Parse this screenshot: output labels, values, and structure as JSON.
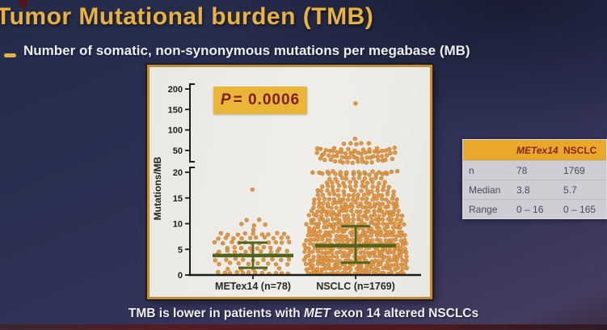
{
  "slide": {
    "title": "Tumor Mutational burden (TMB)",
    "bullet": "Number of somatic, non-synonymous mutations per megabase (MB)",
    "caption": {
      "pre": "TMB is lower in patients with ",
      "em": "MET",
      "post": " exon 14 altered NSCLCs"
    },
    "colors": {
      "title_gold": "#e8b23c",
      "background_navy": "#2a3053",
      "p_box_bg": "#e9b637",
      "p_text_maroon": "#7e1d10",
      "table_header_bg": "#e8a82a",
      "table_header_text": "#8c2318",
      "table_body_bg": "#cfccd3",
      "panel_border_gold": "#bb8f3e",
      "bottom_strip_maroon": "#4a1a20"
    }
  },
  "chart_data": {
    "type": "scatter",
    "subtype": "beeswarm-dot-plot with broken y-axis",
    "title": "",
    "xlabel": "",
    "ylabel": "Mutations/MB",
    "p_value": {
      "em": "P",
      "rest": " = 0.0006"
    },
    "y_axis": {
      "upper_ticks": [
        200,
        150,
        100,
        50
      ],
      "lower_ticks": [
        20,
        15,
        10,
        5,
        0
      ],
      "axis_break_between": [
        20,
        50
      ],
      "grid": false
    },
    "legend": "none",
    "colors": {
      "dot": "#e2953f",
      "dot_edge": "#c07a28",
      "stat_green": "#4f651c",
      "axis": "#1b1b1b"
    },
    "groups": [
      {
        "label": "METex14 (n=78)",
        "n": 78,
        "median": 3.8,
        "range_min": 0,
        "range_max": 16,
        "whisker_low": 1.4,
        "whisker_high": 6.3,
        "strata": [
          [
            16.5,
            1,
            0
          ],
          [
            10.6,
            2,
            8
          ],
          [
            9.8,
            3,
            14
          ],
          [
            8.9,
            1,
            4
          ],
          [
            8.0,
            9,
            40
          ],
          [
            7.2,
            10,
            44
          ],
          [
            6.3,
            11,
            46
          ],
          [
            5.3,
            8,
            32
          ],
          [
            4.6,
            9,
            42
          ],
          [
            3.8,
            7,
            44
          ],
          [
            3.0,
            9,
            46
          ],
          [
            2.2,
            8,
            42
          ],
          [
            1.2,
            5,
            32
          ],
          [
            0.4,
            12,
            44
          ]
        ]
      },
      {
        "label": "NSCLC (n=1769)",
        "n": 1769,
        "median": 5.7,
        "range_min": 0,
        "range_max": 165,
        "whisker_low": 2.4,
        "whisker_high": 9.5,
        "strata": [
          [
            0.4,
            26,
            60
          ],
          [
            1.2,
            27,
            62
          ],
          [
            2.0,
            26,
            62
          ],
          [
            2.8,
            27,
            62
          ],
          [
            3.6,
            26,
            62
          ],
          [
            4.4,
            27,
            62
          ],
          [
            5.2,
            26,
            62
          ],
          [
            6.0,
            27,
            62
          ],
          [
            6.8,
            26,
            60
          ],
          [
            7.6,
            25,
            60
          ],
          [
            8.4,
            24,
            58
          ],
          [
            9.2,
            23,
            56
          ],
          [
            10.0,
            24,
            60
          ],
          [
            10.8,
            22,
            56
          ],
          [
            11.6,
            22,
            58
          ],
          [
            12.4,
            21,
            54
          ],
          [
            13.2,
            20,
            52
          ],
          [
            14.0,
            19,
            52
          ],
          [
            14.8,
            18,
            50
          ],
          [
            15.6,
            16,
            46
          ],
          [
            16.4,
            15,
            48
          ],
          [
            17.2,
            13,
            42
          ],
          [
            18.0,
            11,
            36
          ],
          [
            18.8,
            10,
            32
          ],
          [
            19.6,
            12,
            40
          ],
          [
            20.4,
            14,
            52
          ],
          [
            34,
            16,
            44,
            -4
          ],
          [
            40,
            20,
            48,
            -6
          ],
          [
            46,
            20,
            47,
            -6
          ],
          [
            51,
            7,
            26,
            -2
          ],
          [
            66,
            5,
            15
          ],
          [
            79,
            1,
            3
          ],
          [
            165,
            1,
            0
          ]
        ]
      }
    ]
  },
  "table": {
    "header": [
      "",
      "METex14",
      "NSCLC"
    ],
    "rows": [
      [
        "n",
        "78",
        "1769"
      ],
      [
        "Median",
        "3.8",
        "5.7"
      ],
      [
        "Range",
        "0 – 16",
        "0 – 165"
      ]
    ]
  }
}
